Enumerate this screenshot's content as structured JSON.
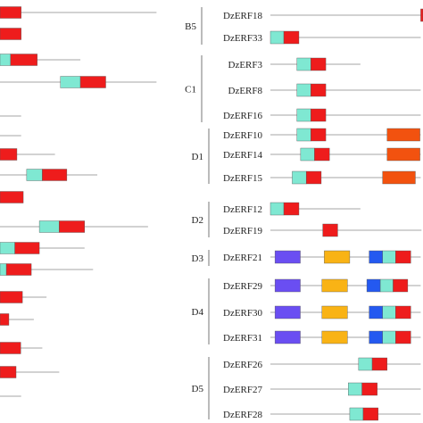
{
  "colors": {
    "line": "#a6a6a6",
    "ap2_erf_teal": "#7fe8d2",
    "ap2_erf_red": "#ee1c1c",
    "orange_motif": "#f2520f",
    "purple_motif": "#6a4ef2",
    "gold_motif": "#f9b315",
    "blue_motif": "#2459f0",
    "bracket": "#777777",
    "text": "#222222"
  },
  "left_panel": {
    "rows": [
      {
        "line_end": 0.37,
        "boxes": [
          {
            "type": "red",
            "start": 0.0,
            "end": 0.05
          }
        ]
      },
      {
        "line_end": 0.05,
        "boxes": [
          {
            "type": "red",
            "start": 0.0,
            "end": 0.05
          }
        ]
      },
      {
        "line_end": 0.19,
        "boxes": [
          {
            "type": "teal",
            "start": 0.0,
            "end": 0.025
          },
          {
            "type": "red",
            "start": 0.025,
            "end": 0.088
          }
        ]
      },
      {
        "line_end": 0.37,
        "boxes": [
          {
            "type": "teal",
            "start": 0.143,
            "end": 0.19
          },
          {
            "type": "red",
            "start": 0.19,
            "end": 0.25
          }
        ]
      },
      {
        "line_end": 0.05,
        "boxes": []
      },
      {
        "line_end": 0.05,
        "boxes": []
      },
      {
        "line_end": 0.13,
        "boxes": [
          {
            "type": "red",
            "start": 0.0,
            "end": 0.04
          }
        ]
      },
      {
        "line_end": 0.23,
        "boxes": [
          {
            "type": "teal",
            "start": 0.063,
            "end": 0.1
          },
          {
            "type": "red",
            "start": 0.1,
            "end": 0.158
          }
        ]
      },
      {
        "line_end": 0.05,
        "boxes": [
          {
            "type": "red",
            "start": 0.0,
            "end": 0.055
          }
        ]
      },
      {
        "line_end": 0.35,
        "boxes": [
          {
            "type": "teal",
            "start": 0.093,
            "end": 0.14
          },
          {
            "type": "red",
            "start": 0.14,
            "end": 0.2
          }
        ]
      },
      {
        "line_end": 0.2,
        "boxes": [
          {
            "type": "teal",
            "start": 0.0,
            "end": 0.035
          },
          {
            "type": "red",
            "start": 0.035,
            "end": 0.093
          }
        ]
      },
      {
        "line_end": 0.22,
        "boxes": [
          {
            "type": "teal",
            "start": 0.0,
            "end": 0.015
          },
          {
            "type": "red",
            "start": 0.015,
            "end": 0.074
          }
        ]
      },
      {
        "line_end": 0.11,
        "boxes": [
          {
            "type": "red",
            "start": 0.0,
            "end": 0.053
          }
        ]
      },
      {
        "line_end": 0.08,
        "boxes": [
          {
            "type": "red",
            "start": 0.0,
            "end": 0.021
          }
        ]
      },
      {
        "line_end": 0.1,
        "boxes": [
          {
            "type": "red",
            "start": 0.0,
            "end": 0.049
          }
        ]
      },
      {
        "line_end": 0.14,
        "boxes": [
          {
            "type": "red",
            "start": 0.0,
            "end": 0.038
          }
        ]
      },
      {
        "line_end": 0.05,
        "boxes": []
      }
    ]
  },
  "right_panel": {
    "groups": [
      {
        "name": "B5",
        "genes": [
          {
            "label": "DzERF18",
            "line_end": 0.985,
            "boxes": [
              {
                "type": "red",
                "start": 0.985,
                "end": 1.0
              }
            ]
          },
          {
            "label": "DzERF33",
            "line_end": 0.985,
            "boxes": [
              {
                "type": "teal",
                "start": 0.0,
                "end": 0.088
              },
              {
                "type": "red",
                "start": 0.088,
                "end": 0.187
              }
            ]
          }
        ]
      },
      {
        "name": "C1",
        "genes": [
          {
            "label": "DzERF3",
            "line_end": 0.59,
            "boxes": [
              {
                "type": "teal",
                "start": 0.174,
                "end": 0.265
              },
              {
                "type": "red",
                "start": 0.265,
                "end": 0.363
              }
            ]
          },
          {
            "label": "DzERF8",
            "line_end": 0.985,
            "boxes": [
              {
                "type": "teal",
                "start": 0.174,
                "end": 0.265
              },
              {
                "type": "red",
                "start": 0.265,
                "end": 0.363
              }
            ]
          },
          {
            "label": "DzERF16",
            "line_end": 0.985,
            "boxes": [
              {
                "type": "teal",
                "start": 0.174,
                "end": 0.265
              },
              {
                "type": "red",
                "start": 0.265,
                "end": 0.363
              }
            ]
          }
        ]
      },
      {
        "name": "D1",
        "genes": [
          {
            "label": "DzERF10",
            "line_end": 0.985,
            "boxes": [
              {
                "type": "teal",
                "start": 0.174,
                "end": 0.265
              },
              {
                "type": "red",
                "start": 0.265,
                "end": 0.363
              },
              {
                "type": "orange",
                "start": 0.765,
                "end": 0.98
              }
            ]
          },
          {
            "label": "DzERF14",
            "line_end": 0.985,
            "boxes": [
              {
                "type": "teal",
                "start": 0.198,
                "end": 0.289
              },
              {
                "type": "red",
                "start": 0.289,
                "end": 0.387
              },
              {
                "type": "orange",
                "start": 0.765,
                "end": 0.98
              }
            ]
          },
          {
            "label": "DzERF15",
            "line_end": 0.985,
            "boxes": [
              {
                "type": "teal",
                "start": 0.143,
                "end": 0.235
              },
              {
                "type": "red",
                "start": 0.235,
                "end": 0.333
              },
              {
                "type": "orange",
                "start": 0.735,
                "end": 0.95
              }
            ]
          }
        ]
      },
      {
        "name": "D2",
        "genes": [
          {
            "label": "DzERF12",
            "line_end": 0.59,
            "boxes": [
              {
                "type": "teal",
                "start": 0.0,
                "end": 0.088
              },
              {
                "type": "red",
                "start": 0.088,
                "end": 0.187
              }
            ]
          },
          {
            "label": "DzERF19",
            "line_end": 0.99,
            "boxes": [
              {
                "type": "red",
                "start": 0.343,
                "end": 0.441
              }
            ]
          }
        ]
      },
      {
        "name": "D3",
        "genes": [
          {
            "label": "DzERF21",
            "line_end": 0.985,
            "boxes": [
              {
                "type": "purple",
                "start": 0.03,
                "end": 0.196
              },
              {
                "type": "gold",
                "start": 0.353,
                "end": 0.52
              },
              {
                "type": "blue",
                "start": 0.647,
                "end": 0.735
              },
              {
                "type": "teal",
                "start": 0.735,
                "end": 0.82
              },
              {
                "type": "red",
                "start": 0.82,
                "end": 0.92
              }
            ]
          }
        ]
      },
      {
        "name": "D4",
        "genes": [
          {
            "label": "DzERF29",
            "line_end": 0.985,
            "boxes": [
              {
                "type": "purple",
                "start": 0.03,
                "end": 0.196
              },
              {
                "type": "gold",
                "start": 0.338,
                "end": 0.505
              },
              {
                "type": "blue",
                "start": 0.632,
                "end": 0.72
              },
              {
                "type": "teal",
                "start": 0.72,
                "end": 0.804
              },
              {
                "type": "red",
                "start": 0.804,
                "end": 0.9
              }
            ]
          },
          {
            "label": "DzERF30",
            "line_end": 0.985,
            "boxes": [
              {
                "type": "purple",
                "start": 0.03,
                "end": 0.196
              },
              {
                "type": "gold",
                "start": 0.338,
                "end": 0.505
              },
              {
                "type": "blue",
                "start": 0.647,
                "end": 0.735
              },
              {
                "type": "teal",
                "start": 0.735,
                "end": 0.82
              },
              {
                "type": "red",
                "start": 0.82,
                "end": 0.92
              }
            ]
          },
          {
            "label": "DzERF31",
            "line_end": 0.985,
            "boxes": [
              {
                "type": "purple",
                "start": 0.03,
                "end": 0.196
              },
              {
                "type": "gold",
                "start": 0.338,
                "end": 0.505
              },
              {
                "type": "blue",
                "start": 0.647,
                "end": 0.735
              },
              {
                "type": "teal",
                "start": 0.735,
                "end": 0.82
              },
              {
                "type": "red",
                "start": 0.82,
                "end": 0.92
              }
            ]
          }
        ]
      },
      {
        "name": "D5",
        "genes": [
          {
            "label": "DzERF26",
            "line_end": 0.985,
            "boxes": [
              {
                "type": "teal",
                "start": 0.578,
                "end": 0.667
              },
              {
                "type": "red",
                "start": 0.667,
                "end": 0.765
              }
            ]
          },
          {
            "label": "DzERF27",
            "line_end": 0.985,
            "boxes": [
              {
                "type": "teal",
                "start": 0.51,
                "end": 0.6
              },
              {
                "type": "red",
                "start": 0.6,
                "end": 0.7
              }
            ]
          },
          {
            "label": "DzERF28",
            "line_end": 0.985,
            "boxes": [
              {
                "type": "teal",
                "start": 0.52,
                "end": 0.608
              },
              {
                "type": "red",
                "start": 0.608,
                "end": 0.706
              }
            ]
          }
        ]
      }
    ]
  }
}
